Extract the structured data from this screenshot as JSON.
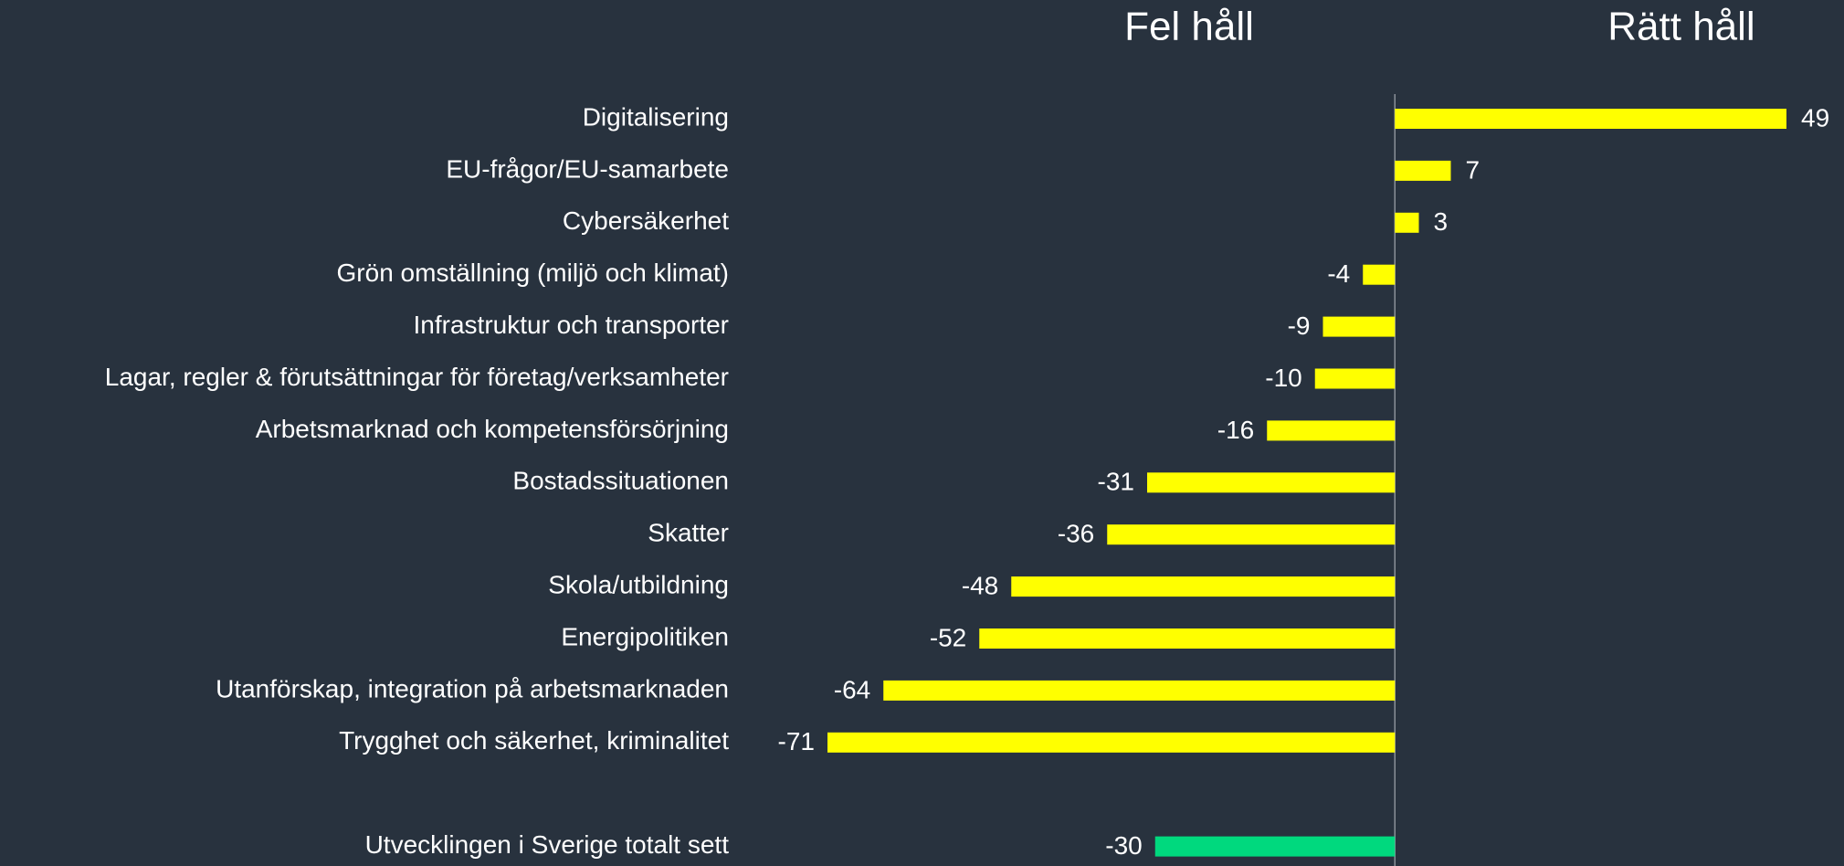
{
  "chart_data": {
    "type": "barh",
    "annotations": [
      "Fel håll",
      "Rätt håll"
    ],
    "categories": [
      "Digitalisering",
      "EU-frågor/EU-samarbete",
      "Cybersäkerhet",
      "Grön omställning (miljö och klimat)",
      "Infrastruktur och transporter",
      "Lagar, regler & förutsättningar för företag/verksamheter",
      "Arbetsmarknad och kompetensförsörjning",
      "Bostadssituationen",
      "Skatter",
      "Skola/utbildning",
      "Energipolitiken",
      "Utanförskap, integration på arbetsmarknaden",
      "Trygghet och säkerhet, kriminalitet",
      null,
      "Utvecklingen i Sverige totalt sett"
    ],
    "values": [
      49,
      7,
      3,
      -4,
      -9,
      -10,
      -16,
      -31,
      -36,
      -48,
      -52,
      -64,
      -71,
      null,
      -30
    ],
    "colors": [
      "#ffff00",
      "#ffff00",
      "#ffff00",
      "#ffff00",
      "#ffff00",
      "#ffff00",
      "#ffff00",
      "#ffff00",
      "#ffff00",
      "#ffff00",
      "#ffff00",
      "#ffff00",
      "#ffff00",
      null,
      "#00d97e"
    ],
    "xlim": [
      -71,
      49
    ]
  }
}
